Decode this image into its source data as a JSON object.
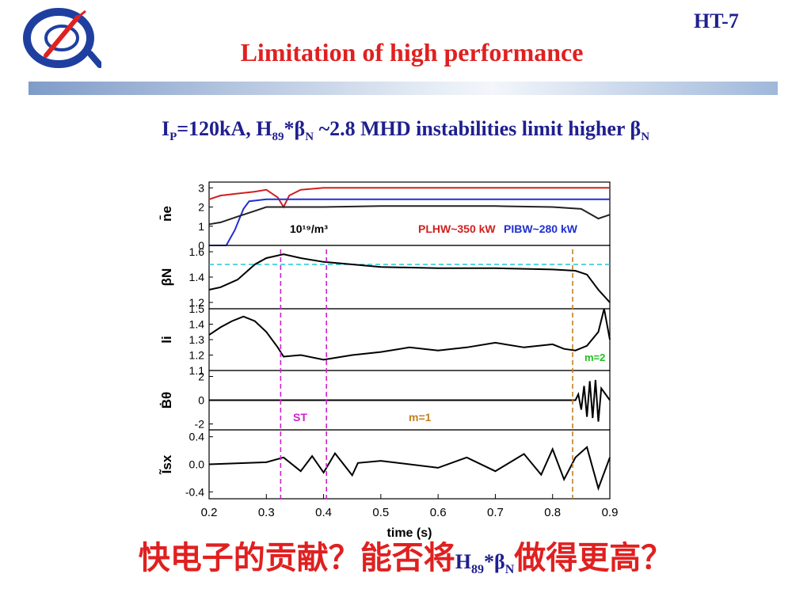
{
  "slide": {
    "tag": "HT-7",
    "title": "Limitation of high performance",
    "subtitle_parts": [
      "I",
      "P",
      "=120kA, H",
      "89",
      "*β",
      "N",
      " ~2.8  MHD instabilities limit higher β",
      "N"
    ],
    "bottom_parts": [
      "快电子的贡献？能否将",
      "H",
      "89",
      "*β",
      "N",
      "做得更高？"
    ]
  },
  "colors": {
    "accent_red": "#e02020",
    "text_blue": "#1f1f8f"
  },
  "chart_data": {
    "type": "line",
    "xlabel": "time (s)",
    "xlim": [
      0.2,
      0.9
    ],
    "xticks": [
      "0.2",
      "0.3",
      "0.4",
      "0.5",
      "0.6",
      "0.7",
      "0.8",
      "0.9"
    ],
    "vlines": [
      {
        "x": 0.325,
        "color": "#d020d0"
      },
      {
        "x": 0.405,
        "color": "#d020d0"
      },
      {
        "x": 0.835,
        "color": "#c08020"
      }
    ],
    "panels": [
      {
        "ylabel": "n̄e",
        "ylim": [
          0,
          3.3
        ],
        "yticks": [
          "0",
          "1",
          "2",
          "3"
        ],
        "annotations": [
          "10¹⁹/m³",
          "PLHW~350 kW",
          "PIBW~280 kW"
        ],
        "series": [
          {
            "color": "#d02020",
            "x": [
              0.2,
              0.22,
              0.25,
              0.28,
              0.3,
              0.32,
              0.33,
              0.34,
              0.36,
              0.4,
              0.5,
              0.6,
              0.7,
              0.8,
              0.9
            ],
            "y": [
              2.4,
              2.6,
              2.7,
              2.8,
              2.9,
              2.5,
              2.0,
              2.6,
              2.9,
              3.0,
              3.0,
              3.0,
              3.0,
              3.0,
              3.0
            ]
          },
          {
            "color": "#2030d0",
            "x": [
              0.2,
              0.23,
              0.245,
              0.26,
              0.27,
              0.3,
              0.4,
              0.5,
              0.6,
              0.7,
              0.8,
              0.9
            ],
            "y": [
              0,
              0,
              0.8,
              1.9,
              2.3,
              2.4,
              2.4,
              2.4,
              2.4,
              2.4,
              2.4,
              2.4
            ]
          },
          {
            "color": "#222222",
            "x": [
              0.2,
              0.22,
              0.25,
              0.28,
              0.3,
              0.35,
              0.4,
              0.5,
              0.6,
              0.7,
              0.8,
              0.85,
              0.88,
              0.9
            ],
            "y": [
              1.1,
              1.2,
              1.5,
              1.8,
              2.0,
              2.0,
              2.0,
              2.05,
              2.05,
              2.05,
              2.0,
              1.9,
              1.4,
              1.6
            ]
          }
        ]
      },
      {
        "ylabel": "βN",
        "ylim": [
          1.15,
          1.65
        ],
        "yticks": [
          "1.2",
          "1.4",
          "1.6"
        ],
        "hline": {
          "y": 1.5,
          "color": "#20c8d8"
        },
        "series": [
          {
            "color": "#000000",
            "x": [
              0.2,
              0.22,
              0.25,
              0.28,
              0.3,
              0.33,
              0.36,
              0.4,
              0.45,
              0.5,
              0.6,
              0.7,
              0.8,
              0.84,
              0.86,
              0.88,
              0.9
            ],
            "y": [
              1.3,
              1.32,
              1.38,
              1.5,
              1.55,
              1.58,
              1.55,
              1.52,
              1.5,
              1.48,
              1.47,
              1.47,
              1.46,
              1.45,
              1.42,
              1.3,
              1.2
            ]
          }
        ]
      },
      {
        "ylabel": "li",
        "ylim": [
          1.1,
          1.5
        ],
        "yticks": [
          "1.1",
          "1.2",
          "1.3",
          "1.4",
          "1.5"
        ],
        "annotations": [
          "m=2"
        ],
        "series": [
          {
            "color": "#000000",
            "x": [
              0.2,
              0.22,
              0.24,
              0.26,
              0.28,
              0.3,
              0.32,
              0.33,
              0.36,
              0.4,
              0.45,
              0.5,
              0.55,
              0.6,
              0.65,
              0.7,
              0.75,
              0.8,
              0.82,
              0.84,
              0.86,
              0.88,
              0.89,
              0.9
            ],
            "y": [
              1.33,
              1.38,
              1.42,
              1.45,
              1.42,
              1.35,
              1.25,
              1.19,
              1.2,
              1.17,
              1.2,
              1.22,
              1.25,
              1.23,
              1.25,
              1.28,
              1.25,
              1.27,
              1.24,
              1.23,
              1.26,
              1.35,
              1.5,
              1.3
            ]
          }
        ]
      },
      {
        "ylabel": "Ḃθ",
        "ylim": [
          -2.5,
          2.5
        ],
        "yticks": [
          "-2",
          "0",
          "2"
        ],
        "annotations": [
          "ST",
          "m=1"
        ],
        "series": [
          {
            "color": "#000000",
            "x": [
              0.2,
              0.84,
              0.845,
              0.85,
              0.855,
              0.86,
              0.865,
              0.87,
              0.875,
              0.88,
              0.885,
              0.9
            ],
            "y": [
              0,
              0,
              0.5,
              -0.8,
              1.2,
              -1.4,
              1.6,
              -1.5,
              1.7,
              -1.8,
              1.0,
              0
            ]
          }
        ]
      },
      {
        "ylabel": "Ĩsx",
        "ylim": [
          -0.5,
          0.5
        ],
        "yticks": [
          "-0.4",
          "0.0",
          "0.4"
        ],
        "series": [
          {
            "color": "#000000",
            "x": [
              0.2,
              0.3,
              0.33,
              0.36,
              0.38,
              0.4,
              0.42,
              0.45,
              0.46,
              0.5,
              0.6,
              0.65,
              0.7,
              0.75,
              0.78,
              0.8,
              0.82,
              0.84,
              0.86,
              0.88,
              0.9
            ],
            "y": [
              0,
              0.03,
              0.1,
              -0.1,
              0.12,
              -0.12,
              0.16,
              -0.16,
              0.02,
              0.05,
              -0.05,
              0.1,
              -0.1,
              0.15,
              -0.15,
              0.22,
              -0.22,
              0.1,
              0.25,
              -0.35,
              0.1
            ]
          }
        ]
      }
    ]
  }
}
